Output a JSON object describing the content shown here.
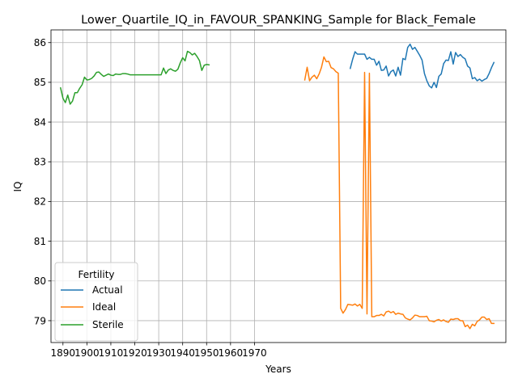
{
  "chart_data": {
    "type": "line",
    "title": "Lower_Quartile_IQ_in_FAVOUR_SPANKING_Sample for Black_Female",
    "xlabel": "Years",
    "ylabel": "IQ",
    "xlim": [
      1885,
      2075
    ],
    "ylim": [
      78.45,
      86.32
    ],
    "x_ticks": [
      1890,
      1900,
      1910,
      1920,
      1930,
      1940,
      1950,
      1960,
      1970
    ],
    "y_ticks": [
      79,
      80,
      81,
      82,
      83,
      84,
      85,
      86
    ],
    "grid": true,
    "legend": {
      "title": "Fertility",
      "placement": "lower-left"
    },
    "series": [
      {
        "name": "Actual",
        "color": "#1f77b4",
        "x": [
          2010,
          2011,
          2012,
          2013,
          2014,
          2015,
          2016,
          2017,
          2018,
          2019,
          2020,
          2021,
          2022,
          2023,
          2024,
          2025,
          2026,
          2027,
          2028,
          2029,
          2030,
          2031,
          2032,
          2033,
          2034,
          2035,
          2036,
          2037,
          2038,
          2039,
          2040,
          2041,
          2042,
          2043,
          2044,
          2045,
          2046,
          2047,
          2048,
          2049,
          2050,
          2051,
          2052,
          2053,
          2054,
          2055,
          2056,
          2057,
          2058,
          2059,
          2060,
          2061,
          2062,
          2063,
          2064,
          2065,
          2066,
          2067,
          2068,
          2069,
          2070
        ],
        "values": [
          85.35,
          85.58,
          85.77,
          85.71,
          85.71,
          85.71,
          85.71,
          85.58,
          85.63,
          85.58,
          85.58,
          85.43,
          85.53,
          85.3,
          85.31,
          85.41,
          85.16,
          85.27,
          85.31,
          85.16,
          85.38,
          85.18,
          85.6,
          85.57,
          85.88,
          85.96,
          85.83,
          85.88,
          85.78,
          85.68,
          85.56,
          85.22,
          85.04,
          84.91,
          84.86,
          85.0,
          84.87,
          85.15,
          85.21,
          85.47,
          85.56,
          85.55,
          85.77,
          85.46,
          85.75,
          85.65,
          85.7,
          85.63,
          85.59,
          85.41,
          85.36,
          85.09,
          85.12,
          85.04,
          85.08,
          85.03,
          85.07,
          85.1,
          85.22,
          85.37,
          85.5
        ]
      },
      {
        "name": "Ideal",
        "color": "#ff7f0e",
        "x": [
          1991,
          1992,
          1993,
          1994,
          1995,
          1996,
          1997,
          1998,
          1999,
          2000,
          2001,
          2002,
          2003,
          2004,
          2005,
          2006,
          2007,
          2008,
          2009,
          2010,
          2011,
          2012,
          2013,
          2014,
          2015,
          2016,
          2017,
          2018,
          2019,
          2020,
          2021,
          2022,
          2023,
          2024,
          2025,
          2026,
          2027,
          2028,
          2029,
          2030,
          2031,
          2032,
          2033,
          2034,
          2035,
          2036,
          2037,
          2038,
          2039,
          2040,
          2041,
          2042,
          2043,
          2044,
          2045,
          2046,
          2047,
          2048,
          2049,
          2050,
          2051,
          2052,
          2053,
          2054,
          2055,
          2056,
          2057,
          2058,
          2059,
          2060,
          2061,
          2062,
          2063,
          2064,
          2065,
          2066,
          2067,
          2068,
          2069,
          2070
        ],
        "values": [
          85.06,
          85.38,
          85.04,
          85.13,
          85.18,
          85.09,
          85.21,
          85.38,
          85.64,
          85.52,
          85.53,
          85.37,
          85.34,
          85.27,
          85.23,
          79.31,
          79.19,
          79.28,
          79.41,
          79.4,
          79.39,
          79.42,
          79.37,
          79.41,
          79.31,
          85.25,
          79.17,
          85.23,
          79.1,
          79.1,
          79.13,
          79.13,
          79.16,
          79.12,
          79.22,
          79.24,
          79.2,
          79.23,
          79.16,
          79.19,
          79.17,
          79.16,
          79.07,
          79.04,
          79.02,
          79.07,
          79.14,
          79.13,
          79.1,
          79.1,
          79.1,
          79.11,
          79.0,
          78.99,
          78.97,
          79.01,
          79.03,
          78.99,
          79.02,
          78.98,
          78.96,
          79.04,
          79.03,
          79.05,
          79.05,
          79.0,
          79.0,
          78.85,
          78.89,
          78.8,
          78.91,
          78.87,
          78.98,
          79.02,
          79.09,
          79.09,
          79.03,
          79.05,
          78.93,
          78.93
        ]
      },
      {
        "name": "Sterile",
        "color": "#2ca02c",
        "x": [
          1889,
          1890,
          1891,
          1892,
          1893,
          1894,
          1895,
          1896,
          1897,
          1898,
          1899,
          1900,
          1901,
          1902,
          1903,
          1904,
          1905,
          1906,
          1907,
          1908,
          1909,
          1910,
          1911,
          1912,
          1913,
          1914,
          1915,
          1916,
          1917,
          1918,
          1919,
          1920,
          1921,
          1922,
          1923,
          1924,
          1925,
          1926,
          1927,
          1928,
          1929,
          1930,
          1931,
          1932,
          1933,
          1934,
          1935,
          1936,
          1937,
          1938,
          1939,
          1940,
          1941,
          1942,
          1943,
          1944,
          1945,
          1946,
          1947,
          1948,
          1949,
          1950,
          1951
        ],
        "values": [
          84.86,
          84.6,
          84.49,
          84.68,
          84.45,
          84.53,
          84.74,
          84.74,
          84.85,
          84.94,
          85.13,
          85.06,
          85.07,
          85.1,
          85.16,
          85.25,
          85.26,
          85.2,
          85.15,
          85.18,
          85.21,
          85.18,
          85.17,
          85.21,
          85.2,
          85.2,
          85.22,
          85.22,
          85.21,
          85.19,
          85.19,
          85.19,
          85.19,
          85.19,
          85.19,
          85.19,
          85.19,
          85.19,
          85.19,
          85.19,
          85.19,
          85.19,
          85.19,
          85.36,
          85.22,
          85.31,
          85.34,
          85.3,
          85.28,
          85.33,
          85.49,
          85.62,
          85.54,
          85.78,
          85.75,
          85.69,
          85.73,
          85.65,
          85.55,
          85.3,
          85.43,
          85.45,
          85.44
        ]
      }
    ]
  }
}
